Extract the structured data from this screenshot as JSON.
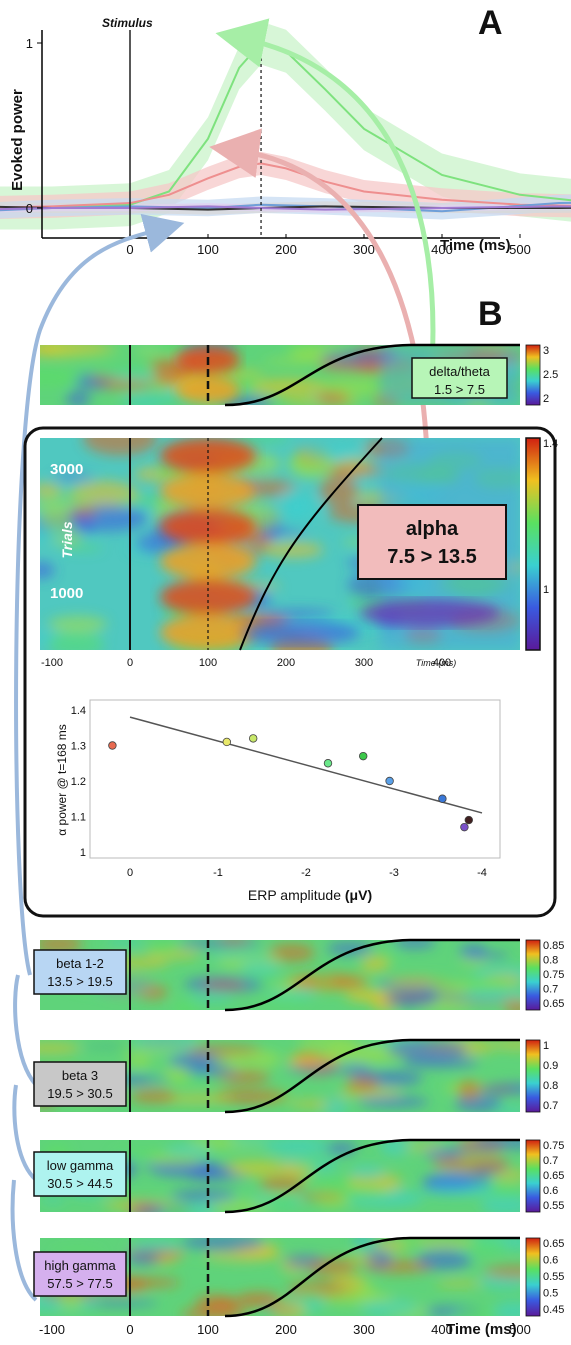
{
  "panel_letters": {
    "a": "A",
    "b": "B"
  },
  "chart_data": [
    {
      "type": "line",
      "name": "evoked-power",
      "title": "",
      "ylabel": "Evoked power",
      "xlabel": "Time (ms)",
      "annotation": "Stimulus",
      "x_ticks": [
        0,
        100,
        200,
        300,
        400,
        500
      ],
      "y_ticks": [
        0,
        1
      ],
      "xlim": [
        -200,
        700
      ],
      "ylim": [
        -0.2,
        1.05
      ],
      "marker_time": 168,
      "series": [
        {
          "color": "#7ee27e",
          "band": "#c9f3c9",
          "x": [
            -200,
            -100,
            0,
            50,
            100,
            140,
            168,
            200,
            250,
            300,
            400,
            500,
            600,
            700
          ],
          "y": [
            0,
            0,
            0.02,
            0.1,
            0.42,
            0.85,
            1.0,
            0.95,
            0.72,
            0.48,
            0.2,
            0.08,
            0.03,
            0.02
          ],
          "spread": 0.13
        },
        {
          "color": "#ee8f8f",
          "band": "#f6c8c8",
          "x": [
            -200,
            -100,
            0,
            50,
            100,
            140,
            168,
            200,
            250,
            300,
            400,
            500,
            600,
            700
          ],
          "y": [
            0,
            0.01,
            0.03,
            0.08,
            0.18,
            0.25,
            0.27,
            0.24,
            0.16,
            0.1,
            0.05,
            0.02,
            0.01,
            0.01
          ],
          "spread": 0.07
        },
        {
          "color": "#6f9fd8",
          "band": "#c7dbf2",
          "x": [
            -200,
            -100,
            0,
            100,
            168,
            250,
            400,
            550,
            700
          ],
          "y": [
            -0.02,
            0.0,
            0.01,
            0.0,
            0.02,
            0.01,
            -0.02,
            0.03,
            0.04
          ],
          "spread": 0.05
        },
        {
          "color": "#333333",
          "band": "#d8d8d8",
          "x": [
            -200,
            -100,
            0,
            100,
            168,
            250,
            400,
            550,
            700
          ],
          "y": [
            0.01,
            0.0,
            0.0,
            -0.01,
            0.0,
            0.01,
            0.0,
            0.0,
            0.01
          ],
          "spread": 0.03
        },
        {
          "color": "#a07bd2",
          "band": "#e0d2f1",
          "x": [
            -200,
            -100,
            0,
            100,
            168,
            250,
            400,
            550,
            700
          ],
          "y": [
            -0.01,
            0.0,
            0.0,
            0.01,
            0.0,
            -0.01,
            0.0,
            0.01,
            0.0
          ],
          "spread": 0.02
        }
      ]
    },
    {
      "type": "heatmap",
      "name": "delta-theta",
      "label_line1": "delta/theta",
      "label_line2": "1.5 > 7.5",
      "label_color": "#b7f5b7",
      "colorbar_ticks": [
        "3",
        "2.5",
        "2"
      ],
      "hot_time": 160
    },
    {
      "type": "heatmap",
      "name": "alpha",
      "label_line1": "alpha",
      "label_line2": "7.5 > 13.5",
      "label_color": "#f2bcbc",
      "ylabel": "Trials",
      "y_ticks": [
        "3000",
        "1000"
      ],
      "x_ticks": [
        "-100",
        "0",
        "100",
        "200",
        "300",
        "400"
      ],
      "xlabel": "Time (ms)",
      "colorbar_ticks": [
        "1.4",
        "1"
      ]
    },
    {
      "type": "scatter",
      "name": "alpha-vs-erp",
      "xlabel_prefix": "ERP amplitude ",
      "xlabel_unit": "(μV)",
      "ylabel": "α power @ t=168 ms",
      "x_ticks": [
        "0",
        "-1",
        "-2",
        "-3",
        "-4"
      ],
      "y_ticks": [
        "1.4",
        "1.3",
        "1.2",
        "1.1",
        "1"
      ],
      "xlim": [
        0.2,
        -4.3
      ],
      "ylim": [
        1.0,
        1.42
      ],
      "points": [
        {
          "x": 0.2,
          "y": 1.3,
          "color": "#e86a50"
        },
        {
          "x": -1.1,
          "y": 1.31,
          "color": "#e8e86a"
        },
        {
          "x": -1.4,
          "y": 1.32,
          "color": "#c8e86a"
        },
        {
          "x": -2.25,
          "y": 1.25,
          "color": "#6ae88a"
        },
        {
          "x": -2.65,
          "y": 1.27,
          "color": "#3cc84a"
        },
        {
          "x": -2.95,
          "y": 1.2,
          "color": "#5aa0e8"
        },
        {
          "x": -3.55,
          "y": 1.15,
          "color": "#3a78d8"
        },
        {
          "x": -3.8,
          "y": 1.07,
          "color": "#7a50c8"
        },
        {
          "x": -3.85,
          "y": 1.09,
          "color": "#402020"
        }
      ],
      "fit": {
        "x": [
          0,
          -4
        ],
        "y": [
          1.38,
          1.11
        ]
      }
    },
    {
      "type": "heatmap",
      "name": "beta-1-2",
      "label_line1": "beta 1-2",
      "label_line2": "13.5 > 19.5",
      "label_color": "#b8d6f3",
      "colorbar_ticks": [
        "0.85",
        "0.8",
        "0.75",
        "0.7",
        "0.65"
      ]
    },
    {
      "type": "heatmap",
      "name": "beta-3",
      "label_line1": "beta 3",
      "label_line2": "19.5 > 30.5",
      "label_color": "#c8c8c8",
      "colorbar_ticks": [
        "1",
        "0.9",
        "0.8",
        "0.7"
      ]
    },
    {
      "type": "heatmap",
      "name": "low-gamma",
      "label_line1": "low gamma",
      "label_line2": "30.5 > 44.5",
      "label_color": "#aef3ef",
      "colorbar_ticks": [
        "0.75",
        "0.7",
        "0.65",
        "0.6",
        "0.55"
      ]
    },
    {
      "type": "heatmap",
      "name": "high-gamma",
      "label_line1": "high gamma",
      "label_line2": "57.5 > 77.5",
      "label_color": "#d5b0ee",
      "colorbar_ticks": [
        "0.65",
        "0.6",
        "0.55",
        "0.5",
        "0.45"
      ]
    },
    {
      "type": "axis",
      "name": "bottom-time-axis",
      "x_ticks": [
        "-100",
        "0",
        "100",
        "200",
        "300",
        "400",
        "500"
      ],
      "xlabel": "Time (ms)"
    }
  ]
}
